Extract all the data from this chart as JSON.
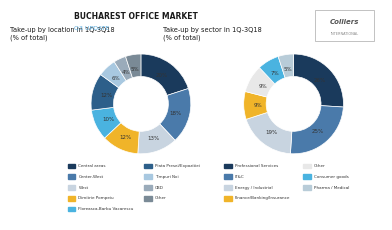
{
  "title": "BUCHAREST OFFICE MARKET",
  "subtitle": "Q3 UPDATE",
  "chart1_title": "Take-up by location in 1Q-3Q18\n(% of total)",
  "chart2_title": "Take-up by sector in 1Q-3Q18\n(% of total)",
  "location_labels": [
    "Central areas",
    "Center-West",
    "West",
    "Dimitrie Pompeiu",
    "Floreasca-Barbu Vacarescu",
    "Piata Presei/Expozitiei",
    "Timpuri Noi",
    "CBD",
    "Other"
  ],
  "location_values": [
    20,
    18,
    13,
    12,
    10,
    12,
    6,
    4,
    5
  ],
  "location_colors": [
    "#1a3a5c",
    "#4a7aaa",
    "#c8d4e0",
    "#f0b429",
    "#4ab3e0",
    "#2d5f8a",
    "#a8c8e0",
    "#9aabba",
    "#7a8a96"
  ],
  "location_pct_labels": [
    "20%",
    "18%",
    "13%",
    "12%",
    "10%",
    "12%",
    "6%",
    "4%",
    "5%"
  ],
  "sector_labels": [
    "Professional Services",
    "IT&C",
    "Energy / Industrial",
    "Finance/Banking/Insurance",
    "Other",
    "Consumer goods",
    "Pharma / Medical"
  ],
  "sector_values": [
    26,
    25,
    19,
    9,
    9,
    7,
    5
  ],
  "sector_colors": [
    "#1a3a5c",
    "#4a7aaa",
    "#c8d4e0",
    "#f0b429",
    "#e8e8e8",
    "#4ab3e0",
    "#b8ccd8"
  ],
  "sector_pct_labels": [
    "26%",
    "25%",
    "19%",
    "9%",
    "9%",
    "7%",
    "5%"
  ],
  "bg_color": "#ffffff",
  "title_color": "#1a1a1a",
  "subtitle_color": "#5aabdc"
}
